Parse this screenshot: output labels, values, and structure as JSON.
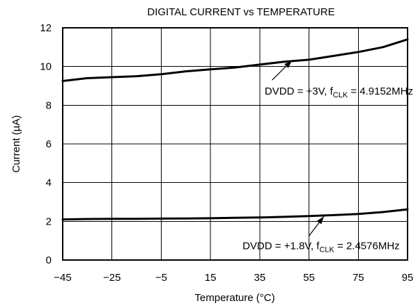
{
  "chart_data": {
    "type": "line",
    "title": "DIGITAL CURRENT vs TEMPERATURE",
    "xlabel": "Temperature (°C)",
    "ylabel": "Current (µA)",
    "xlim": [
      -45,
      95
    ],
    "ylim": [
      0,
      12
    ],
    "x_ticks": [
      -45,
      -25,
      -5,
      15,
      35,
      55,
      75,
      95
    ],
    "x_tick_labels": [
      "−45",
      "−25",
      "−5",
      "15",
      "35",
      "55",
      "75",
      "95"
    ],
    "y_ticks": [
      0,
      2,
      4,
      6,
      8,
      10,
      12
    ],
    "y_tick_labels": [
      "0",
      "2",
      "4",
      "6",
      "8",
      "10",
      "12"
    ],
    "grid": true,
    "series": [
      {
        "name": "DVDD = +3V, fCLK = 4.9152MHz",
        "x": [
          -45,
          -35,
          -25,
          -15,
          -5,
          5,
          15,
          25,
          35,
          45,
          55,
          65,
          75,
          85,
          95
        ],
        "y": [
          9.25,
          9.4,
          9.45,
          9.5,
          9.6,
          9.75,
          9.85,
          9.95,
          10.1,
          10.25,
          10.35,
          10.55,
          10.75,
          11.0,
          11.4
        ]
      },
      {
        "name": "DVDD = +1.8V, fCLK = 2.4576MHz",
        "x": [
          -45,
          -35,
          -25,
          -15,
          -5,
          5,
          15,
          25,
          35,
          45,
          55,
          65,
          75,
          85,
          95
        ],
        "y": [
          2.1,
          2.12,
          2.13,
          2.13,
          2.14,
          2.15,
          2.16,
          2.18,
          2.2,
          2.23,
          2.27,
          2.32,
          2.38,
          2.48,
          2.62
        ]
      }
    ],
    "annotations": [
      {
        "parts": [
          "DVDD = +3V, f",
          "CLK",
          " = 4.9152MHz"
        ],
        "text_at": [
          37,
          8.55
        ],
        "arrow_from": [
          40,
          9.3
        ],
        "arrow_to": [
          48,
          10.3
        ]
      },
      {
        "parts": [
          "DVDD = +1.8V, f",
          "CLK",
          " = 2.4576MHz"
        ],
        "text_at": [
          28,
          0.55
        ],
        "arrow_from": [
          55,
          1.25
        ],
        "arrow_to": [
          61,
          2.25
        ]
      }
    ]
  }
}
